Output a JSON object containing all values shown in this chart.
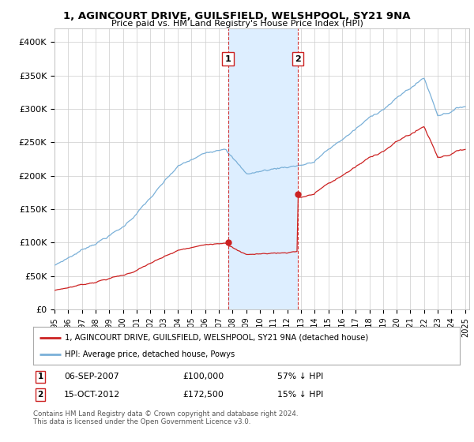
{
  "title": "1, AGINCOURT DRIVE, GUILSFIELD, WELSHPOOL, SY21 9NA",
  "subtitle": "Price paid vs. HM Land Registry's House Price Index (HPI)",
  "ylim": [
    0,
    420000
  ],
  "yticks": [
    0,
    50000,
    100000,
    150000,
    200000,
    250000,
    300000,
    350000,
    400000
  ],
  "ytick_labels": [
    "£0",
    "£50K",
    "£100K",
    "£150K",
    "£200K",
    "£250K",
    "£300K",
    "£350K",
    "£400K"
  ],
  "xlim_start": 1995.0,
  "xlim_end": 2025.3,
  "sale1_date": 2007.68,
  "sale1_price": 100000,
  "sale1_label": "1",
  "sale2_date": 2012.79,
  "sale2_price": 172500,
  "sale2_label": "2",
  "legend_red": "1, AGINCOURT DRIVE, GUILSFIELD, WELSHPOOL, SY21 9NA (detached house)",
  "legend_blue": "HPI: Average price, detached house, Powys",
  "footnote1": "Contains HM Land Registry data © Crown copyright and database right 2024.",
  "footnote2": "This data is licensed under the Open Government Licence v3.0.",
  "hpi_color": "#7ab0d8",
  "price_color": "#cc2222",
  "shade_color": "#ddeeff",
  "marker_box_color": "#cc2222",
  "background_color": "#ffffff",
  "grid_color": "#cccccc"
}
